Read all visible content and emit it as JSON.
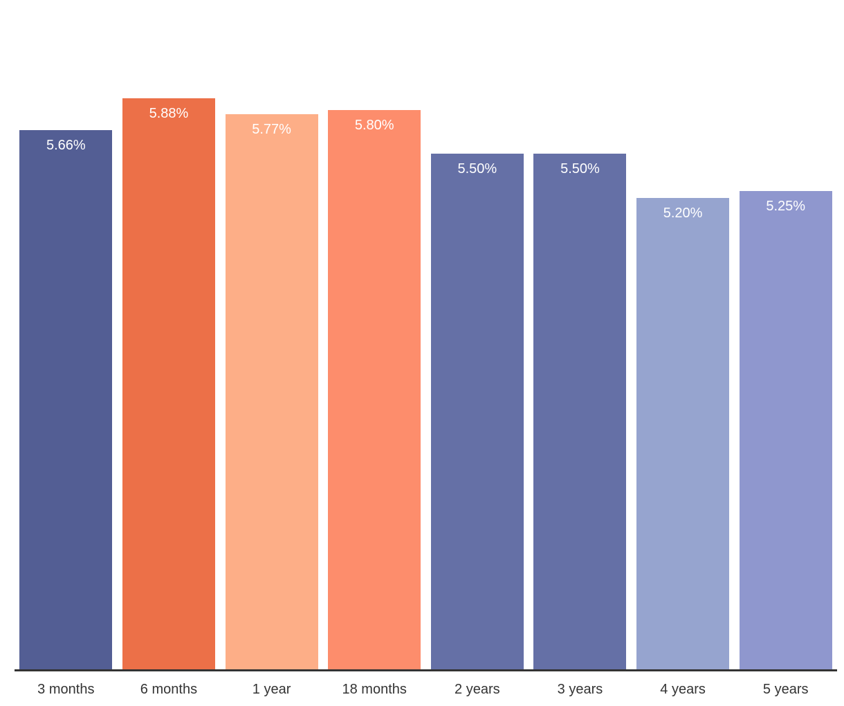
{
  "chart_data": {
    "type": "bar",
    "title": "",
    "xlabel": "",
    "ylabel": "",
    "categories": [
      "3 months",
      "6 months",
      "1 year",
      "18 months",
      "2 years",
      "3 years",
      "4 years",
      "5 years"
    ],
    "values": [
      5.66,
      5.88,
      5.77,
      5.8,
      5.5,
      5.5,
      5.2,
      5.25
    ],
    "value_labels": [
      "5.66%",
      "5.88%",
      "5.77%",
      "5.80%",
      "5.50%",
      "5.50%",
      "5.20%",
      "5.25%"
    ],
    "bar_colors": [
      "#535E94",
      "#EC7048",
      "#FDAE87",
      "#FD8D6C",
      "#6570A6",
      "#6570A6",
      "#96A4CF",
      "#8F97CE"
    ],
    "ylim": [
      2,
      6
    ],
    "grid": false,
    "legend": null,
    "value_label_color": "#ffffff",
    "axis_line_color": "#333333",
    "tick_label_color": "#333333",
    "background_color": "#ffffff"
  }
}
